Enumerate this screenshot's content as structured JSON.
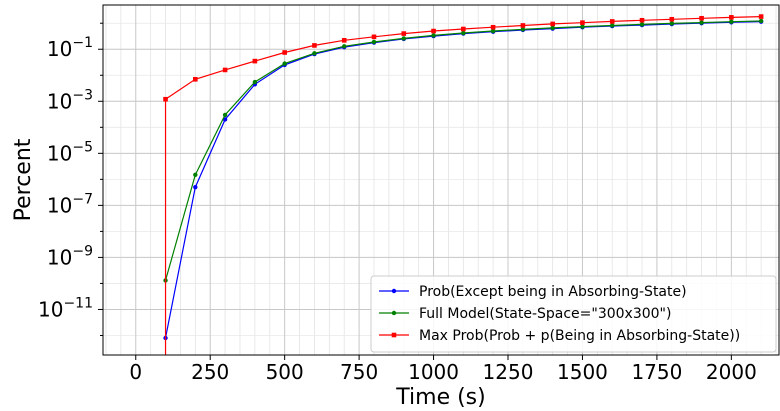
{
  "chart_data": {
    "type": "line",
    "xlabel": "Time (s)",
    "ylabel": "Percent",
    "xlim": [
      -110,
      2160
    ],
    "ylim_log10": [
      -12.75,
      0.7
    ],
    "yscale": "log",
    "grid": true,
    "legend_position": "bottom-right",
    "xticks": [
      0,
      250,
      500,
      750,
      1000,
      1250,
      1500,
      1750,
      2000
    ],
    "xtick_labels": [
      "0",
      "250",
      "500",
      "750",
      "1000",
      "1250",
      "1500",
      "1750",
      "2000"
    ],
    "yticks": [
      {
        "base": "10",
        "exp": "−11",
        "log10": -11
      },
      {
        "base": "10",
        "exp": "−9",
        "log10": -9
      },
      {
        "base": "10",
        "exp": "−7",
        "log10": -7
      },
      {
        "base": "10",
        "exp": "−5",
        "log10": -5
      },
      {
        "base": "10",
        "exp": "−3",
        "log10": -3
      },
      {
        "base": "10",
        "exp": "−1",
        "log10": -1
      }
    ],
    "series": [
      {
        "name": "Prob(Except being in Absorbing-State)",
        "color": "#0000ff",
        "marker": "circle",
        "x": [
          100,
          200,
          300,
          400,
          500,
          600,
          700,
          800,
          900,
          1000,
          1100,
          1200,
          1300,
          1400,
          1500,
          1600,
          1700,
          1800,
          1900,
          2000,
          2100
        ],
        "y": [
          8e-13,
          5e-07,
          0.0002,
          0.0045,
          0.025,
          0.065,
          0.12,
          0.18,
          0.25,
          0.32,
          0.4,
          0.47,
          0.55,
          0.62,
          0.7,
          0.78,
          0.85,
          0.93,
          1.0,
          1.08,
          1.15
        ]
      },
      {
        "name": "Full Model(State-Space=\"300x300\")",
        "color": "#008000",
        "marker": "circle",
        "x": [
          100,
          200,
          300,
          400,
          500,
          600,
          700,
          800,
          900,
          1000,
          1100,
          1200,
          1300,
          1400,
          1500,
          1600,
          1700,
          1800,
          1900,
          2000,
          2100
        ],
        "y": [
          1.3e-10,
          1.5e-06,
          0.0003,
          0.0055,
          0.028,
          0.07,
          0.13,
          0.19,
          0.26,
          0.34,
          0.42,
          0.5,
          0.58,
          0.66,
          0.74,
          0.82,
          0.9,
          0.98,
          1.06,
          1.14,
          1.22
        ]
      },
      {
        "name": "Max Prob(Prob + p(Being in Absorbing-State))",
        "color": "#ff0000",
        "marker": "square",
        "x": [
          100,
          200,
          300,
          400,
          500,
          600,
          700,
          800,
          900,
          1000,
          1100,
          1200,
          1300,
          1400,
          1500,
          1600,
          1700,
          1800,
          1900,
          2000,
          2100
        ],
        "y": [
          0.0012,
          0.007,
          0.016,
          0.035,
          0.075,
          0.14,
          0.22,
          0.3,
          0.4,
          0.5,
          0.6,
          0.7,
          0.82,
          0.94,
          1.05,
          1.17,
          1.3,
          1.42,
          1.55,
          1.68,
          1.8
        ],
        "drop_to_bottom_x": 100
      }
    ]
  }
}
